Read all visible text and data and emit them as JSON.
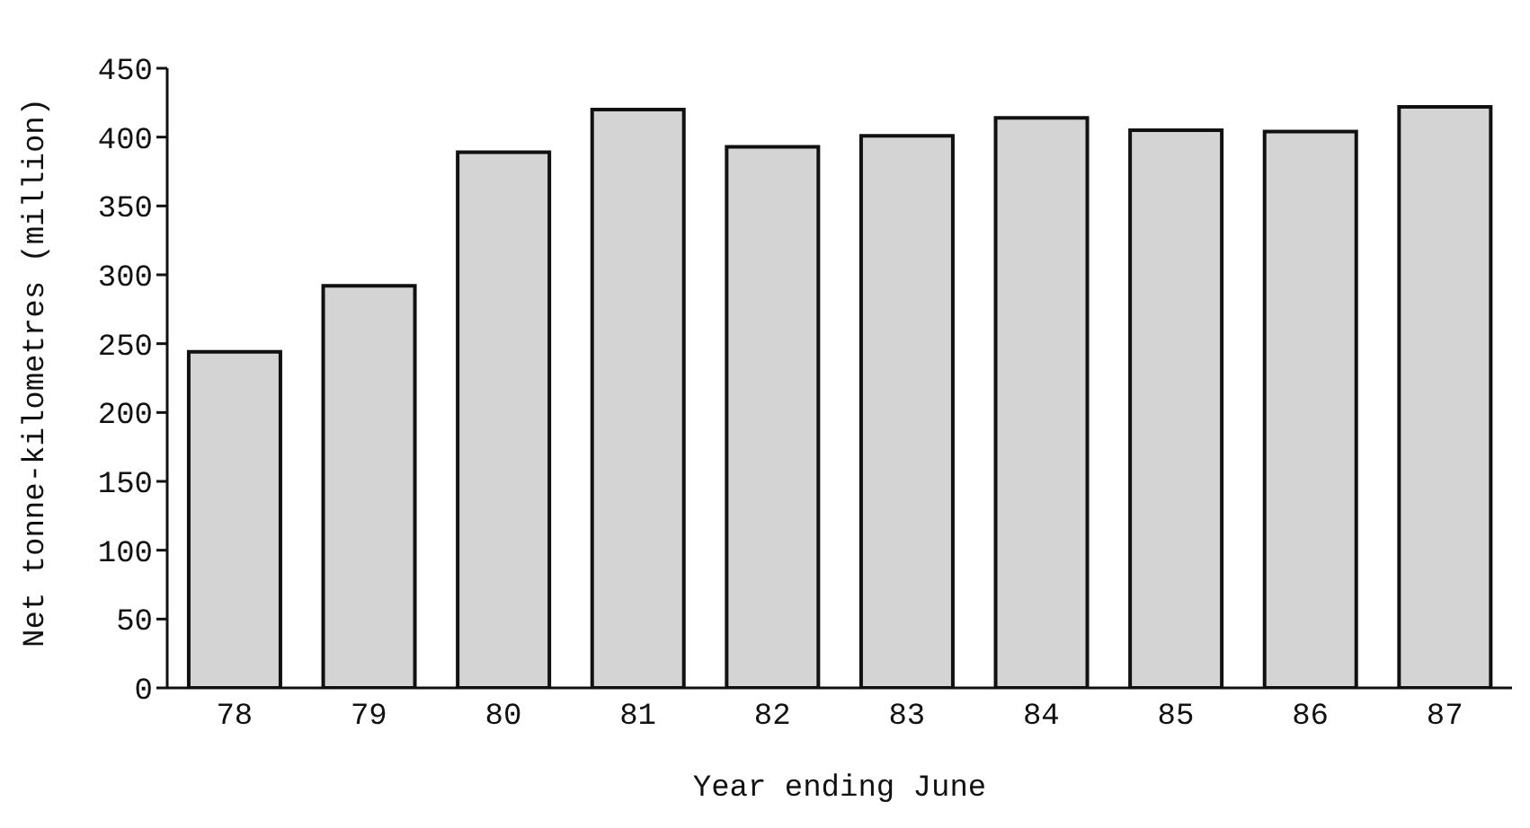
{
  "chart_data": {
    "type": "bar",
    "xlabel": "Year ending June",
    "ylabel": "Net tonne-kilometres (million)",
    "categories": [
      "78",
      "79",
      "80",
      "81",
      "82",
      "83",
      "84",
      "85",
      "86",
      "87"
    ],
    "values": [
      244,
      292,
      389,
      420,
      393,
      401,
      414,
      405,
      404,
      422
    ],
    "color": "#d4d4d4",
    "ylim": [
      0,
      450
    ],
    "yticks": [
      0,
      50,
      100,
      150,
      200,
      250,
      300,
      350,
      400,
      450
    ],
    "grid": false,
    "legend": false
  }
}
